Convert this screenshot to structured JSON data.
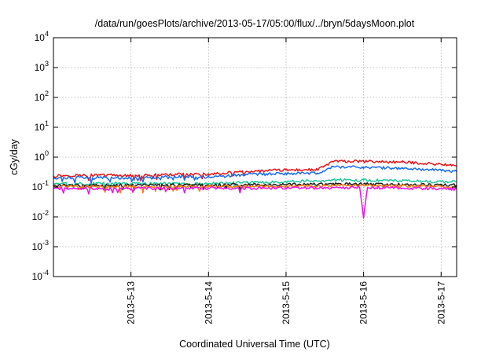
{
  "chart_data": {
    "type": "line",
    "title": "/data/run/goesPlots/archive/2013-05-17/05:00/flux/../bryn/5daysMoon.plot",
    "xlabel": "Coordinated Universal Time (UTC)",
    "ylabel": "cGy/day",
    "yscale": "log",
    "ylim": [
      0.0001,
      10000
    ],
    "xlim_days": [
      0,
      5.2
    ],
    "y_ticks": [
      {
        "base": "10",
        "exp": "4",
        "value": 10000
      },
      {
        "base": "10",
        "exp": "3",
        "value": 1000
      },
      {
        "base": "10",
        "exp": "2",
        "value": 100
      },
      {
        "base": "10",
        "exp": "1",
        "value": 10
      },
      {
        "base": "10",
        "exp": "0",
        "value": 1
      },
      {
        "base": "10",
        "exp": "-1",
        "value": 0.1
      },
      {
        "base": "10",
        "exp": "-2",
        "value": 0.01
      },
      {
        "base": "10",
        "exp": "-3",
        "value": 0.001
      },
      {
        "base": "10",
        "exp": "-4",
        "value": 0.0001
      }
    ],
    "x_ticks": [
      {
        "label": "2013-5-13",
        "day": 1
      },
      {
        "label": "2013-5-14",
        "day": 2
      },
      {
        "label": "2013-5-15",
        "day": 3
      },
      {
        "label": "2013-5-16",
        "day": 4
      },
      {
        "label": "2013-5-17",
        "day": 5
      }
    ],
    "grid": true,
    "legend": "none",
    "series": [
      {
        "name": "red",
        "color": "#e8141a",
        "points": [
          [
            0,
            0.24
          ],
          [
            0.6,
            0.25
          ],
          [
            1,
            0.24
          ],
          [
            1.5,
            0.26
          ],
          [
            2,
            0.27
          ],
          [
            2.5,
            0.33
          ],
          [
            3,
            0.37
          ],
          [
            3.4,
            0.38
          ],
          [
            3.5,
            0.5
          ],
          [
            3.6,
            0.72
          ],
          [
            4,
            0.72
          ],
          [
            4.5,
            0.68
          ],
          [
            5,
            0.58
          ],
          [
            5.2,
            0.5
          ]
        ]
      },
      {
        "name": "blue",
        "color": "#1a6cf0",
        "points": [
          [
            0,
            0.2
          ],
          [
            0.6,
            0.21
          ],
          [
            1,
            0.2
          ],
          [
            1.5,
            0.22
          ],
          [
            2,
            0.22
          ],
          [
            2.5,
            0.26
          ],
          [
            3,
            0.28
          ],
          [
            3.4,
            0.29
          ],
          [
            3.5,
            0.35
          ],
          [
            3.6,
            0.48
          ],
          [
            4,
            0.46
          ],
          [
            4.5,
            0.42
          ],
          [
            5,
            0.36
          ],
          [
            5.2,
            0.33
          ]
        ]
      },
      {
        "name": "green",
        "color": "#1fc79a",
        "points": [
          [
            0,
            0.13
          ],
          [
            1,
            0.13
          ],
          [
            2,
            0.13
          ],
          [
            2.5,
            0.14
          ],
          [
            3,
            0.15
          ],
          [
            3.6,
            0.17
          ],
          [
            4,
            0.17
          ],
          [
            4.5,
            0.16
          ],
          [
            5,
            0.15
          ],
          [
            5.2,
            0.15
          ]
        ]
      },
      {
        "name": "black",
        "color": "#202020",
        "points": [
          [
            0,
            0.115
          ],
          [
            1,
            0.115
          ],
          [
            2,
            0.118
          ],
          [
            3,
            0.12
          ],
          [
            3.6,
            0.125
          ],
          [
            4,
            0.125
          ],
          [
            4.5,
            0.12
          ],
          [
            5,
            0.115
          ],
          [
            5.2,
            0.115
          ]
        ]
      },
      {
        "name": "orange",
        "color": "#ff7a10",
        "points": [
          [
            0,
            0.105
          ],
          [
            1,
            0.102
          ],
          [
            2,
            0.105
          ],
          [
            3,
            0.108
          ],
          [
            4,
            0.11
          ],
          [
            5,
            0.105
          ],
          [
            5.2,
            0.1
          ]
        ]
      },
      {
        "name": "magenta",
        "color": "#ee10e6",
        "points": [
          [
            0,
            0.09
          ],
          [
            0.5,
            0.088
          ],
          [
            1,
            0.088
          ],
          [
            1.5,
            0.09
          ],
          [
            2,
            0.09
          ],
          [
            3,
            0.093
          ],
          [
            3.95,
            0.095
          ],
          [
            4,
            0.009
          ],
          [
            4.05,
            0.095
          ],
          [
            4.5,
            0.092
          ],
          [
            5,
            0.088
          ],
          [
            5.2,
            0.085
          ]
        ]
      }
    ]
  }
}
